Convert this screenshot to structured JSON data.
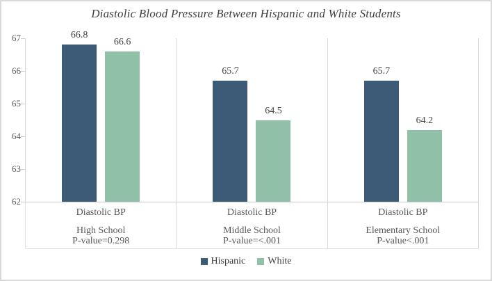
{
  "chart_data": {
    "type": "bar",
    "title": "Diastolic Blood Pressure Between Hispanic and White Students",
    "categories": [
      {
        "measure": "Diastolic BP",
        "school": "High School",
        "p_value": "P-value=0.298"
      },
      {
        "measure": "Diastolic BP",
        "school": "Middle School",
        "p_value": "P-value=<.001"
      },
      {
        "measure": "Diastolic BP",
        "school": "Elementary School",
        "p_value": "P-value<.001"
      }
    ],
    "series": [
      {
        "name": "Hispanic",
        "color": "#3d5a76",
        "values": [
          66.8,
          65.7,
          65.7
        ]
      },
      {
        "name": "White",
        "color": "#90c0a8",
        "values": [
          66.6,
          64.5,
          64.2
        ]
      }
    ],
    "value_labels": {
      "Hispanic": [
        "66.8",
        "65.7",
        "65.7"
      ],
      "White": [
        "66.6",
        "64.5",
        "64.2"
      ]
    },
    "y_axis": {
      "min": 62,
      "max": 67,
      "step": 1,
      "ticks": [
        67,
        66,
        65,
        64,
        63,
        62
      ]
    },
    "legend": {
      "position": "bottom",
      "entries": [
        "Hispanic",
        "White"
      ]
    },
    "grid": false,
    "styles": {
      "hispanic_bar_color": "#3d5a76",
      "white_bar_color": "#90c0a8",
      "axis_line_color": "#c9c9c9",
      "divider_color": "#d9d9d9",
      "label_text_color": "#595959",
      "title_text_color": "#3f3f3f",
      "frame_border_color": "#d9d9d9"
    }
  }
}
